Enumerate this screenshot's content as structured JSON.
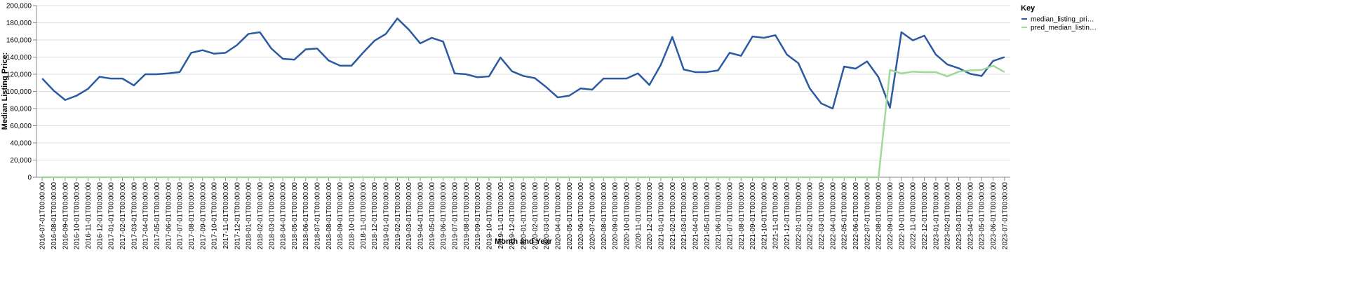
{
  "chart_data": {
    "type": "line",
    "x_label": "Month and Year",
    "y_label": "Median Listing Price:",
    "legend_title": "Key",
    "legend_position": "right",
    "grid": true,
    "categories": [
      "2016-07-01T00:00:00",
      "2016-08-01T00:00:00",
      "2016-09-01T00:00:00",
      "2016-10-01T00:00:00",
      "2016-11-01T00:00:00",
      "2016-12-01T00:00:00",
      "2017-01-01T00:00:00",
      "2017-02-01T00:00:00",
      "2017-03-01T00:00:00",
      "2017-04-01T00:00:00",
      "2017-05-01T00:00:00",
      "2017-06-01T00:00:00",
      "2017-07-01T00:00:00",
      "2017-08-01T00:00:00",
      "2017-09-01T00:00:00",
      "2017-10-01T00:00:00",
      "2017-11-01T00:00:00",
      "2017-12-01T00:00:00",
      "2018-01-01T00:00:00",
      "2018-02-01T00:00:00",
      "2018-03-01T00:00:00",
      "2018-04-01T00:00:00",
      "2018-05-01T00:00:00",
      "2018-06-01T00:00:00",
      "2018-07-01T00:00:00",
      "2018-08-01T00:00:00",
      "2018-09-01T00:00:00",
      "2018-10-01T00:00:00",
      "2018-11-01T00:00:00",
      "2018-12-01T00:00:00",
      "2019-01-01T00:00:00",
      "2019-02-01T00:00:00",
      "2019-03-01T00:00:00",
      "2019-04-01T00:00:00",
      "2019-05-01T00:00:00",
      "2019-06-01T00:00:00",
      "2019-07-01T00:00:00",
      "2019-08-01T00:00:00",
      "2019-09-01T00:00:00",
      "2019-10-01T00:00:00",
      "2019-11-01T00:00:00",
      "2019-12-01T00:00:00",
      "2020-01-01T00:00:00",
      "2020-02-01T00:00:00",
      "2020-03-01T00:00:00",
      "2020-04-01T00:00:00",
      "2020-05-01T00:00:00",
      "2020-06-01T00:00:00",
      "2020-07-01T00:00:00",
      "2020-08-01T00:00:00",
      "2020-09-01T00:00:00",
      "2020-10-01T00:00:00",
      "2020-11-01T00:00:00",
      "2020-12-01T00:00:00",
      "2021-01-01T00:00:00",
      "2021-02-01T00:00:00",
      "2021-03-01T00:00:00",
      "2021-04-01T00:00:00",
      "2021-05-01T00:00:00",
      "2021-06-01T00:00:00",
      "2021-07-01T00:00:00",
      "2021-08-01T00:00:00",
      "2021-09-01T00:00:00",
      "2021-10-01T00:00:00",
      "2021-11-01T00:00:00",
      "2021-12-01T00:00:00",
      "2022-01-01T00:00:00",
      "2022-02-01T00:00:00",
      "2022-03-01T00:00:00",
      "2022-04-01T00:00:00",
      "2022-05-01T00:00:00",
      "2022-06-01T00:00:00",
      "2022-07-01T00:00:00",
      "2022-08-01T00:00:00",
      "2022-09-01T00:00:00",
      "2022-10-01T00:00:00",
      "2022-11-01T00:00:00",
      "2022-12-01T00:00:00",
      "2023-01-01T00:00:00",
      "2023-02-01T00:00:00",
      "2023-03-01T00:00:00",
      "2023-04-01T00:00:00",
      "2023-05-01T00:00:00",
      "2023-06-01T00:00:00",
      "2023-07-01T00:00:00"
    ],
    "series": [
      {
        "name": "median_listing_pri…",
        "color": "#2c5aa0",
        "values": [
          115000,
          101000,
          90000,
          95000,
          103000,
          117000,
          115000,
          115000,
          107000,
          120000,
          120000,
          121000,
          122500,
          145000,
          148000,
          144000,
          145000,
          154000,
          167000,
          169000,
          150000,
          138000,
          137000,
          149000,
          150000,
          136000,
          130000,
          130000,
          145000,
          159000,
          167000,
          185000,
          172000,
          156000,
          162500,
          158000,
          121000,
          120000,
          116500,
          117500,
          139500,
          123500,
          118000,
          115500,
          105000,
          93000,
          95000,
          103500,
          102000,
          115000,
          115000,
          115000,
          121000,
          107500,
          131000,
          163500,
          125500,
          122500,
          122500,
          124500,
          145000,
          141500,
          164000,
          162500,
          165500,
          143000,
          133000,
          103500,
          86000,
          80000,
          129000,
          126500,
          135000,
          116500,
          81000,
          169000,
          159500,
          165000,
          143000,
          131500,
          127000,
          120500,
          118000,
          135500,
          140000
        ]
      },
      {
        "name": "pred_median_listin…",
        "color": "#a1d99b",
        "values": [
          0,
          0,
          0,
          0,
          0,
          0,
          0,
          0,
          0,
          0,
          0,
          0,
          0,
          0,
          0,
          0,
          0,
          0,
          0,
          0,
          0,
          0,
          0,
          0,
          0,
          0,
          0,
          0,
          0,
          0,
          0,
          0,
          0,
          0,
          0,
          0,
          0,
          0,
          0,
          0,
          0,
          0,
          0,
          0,
          0,
          0,
          0,
          0,
          0,
          0,
          0,
          0,
          0,
          0,
          0,
          0,
          0,
          0,
          0,
          0,
          0,
          0,
          0,
          0,
          0,
          0,
          0,
          0,
          0,
          0,
          0,
          0,
          0,
          0,
          125000,
          121000,
          123000,
          122500,
          122500,
          117500,
          123000,
          124500,
          125000,
          130000,
          122500
        ]
      }
    ],
    "ylim": [
      0,
      200000
    ],
    "yticks": [
      0,
      {
        "value": 20000,
        "label": "20,000"
      },
      {
        "value": 40000,
        "label": "40,000"
      },
      {
        "value": 60000,
        "label": "60,000"
      },
      {
        "value": 80000,
        "label": "80,000"
      },
      {
        "value": 100000,
        "label": "100,000"
      },
      {
        "value": 120000,
        "label": "120,000"
      },
      {
        "value": 140000,
        "label": "140,000"
      },
      {
        "value": 160000,
        "label": "160,000"
      },
      {
        "value": 180000,
        "label": "180,000"
      },
      {
        "value": 200000,
        "label": "200,000"
      }
    ]
  }
}
